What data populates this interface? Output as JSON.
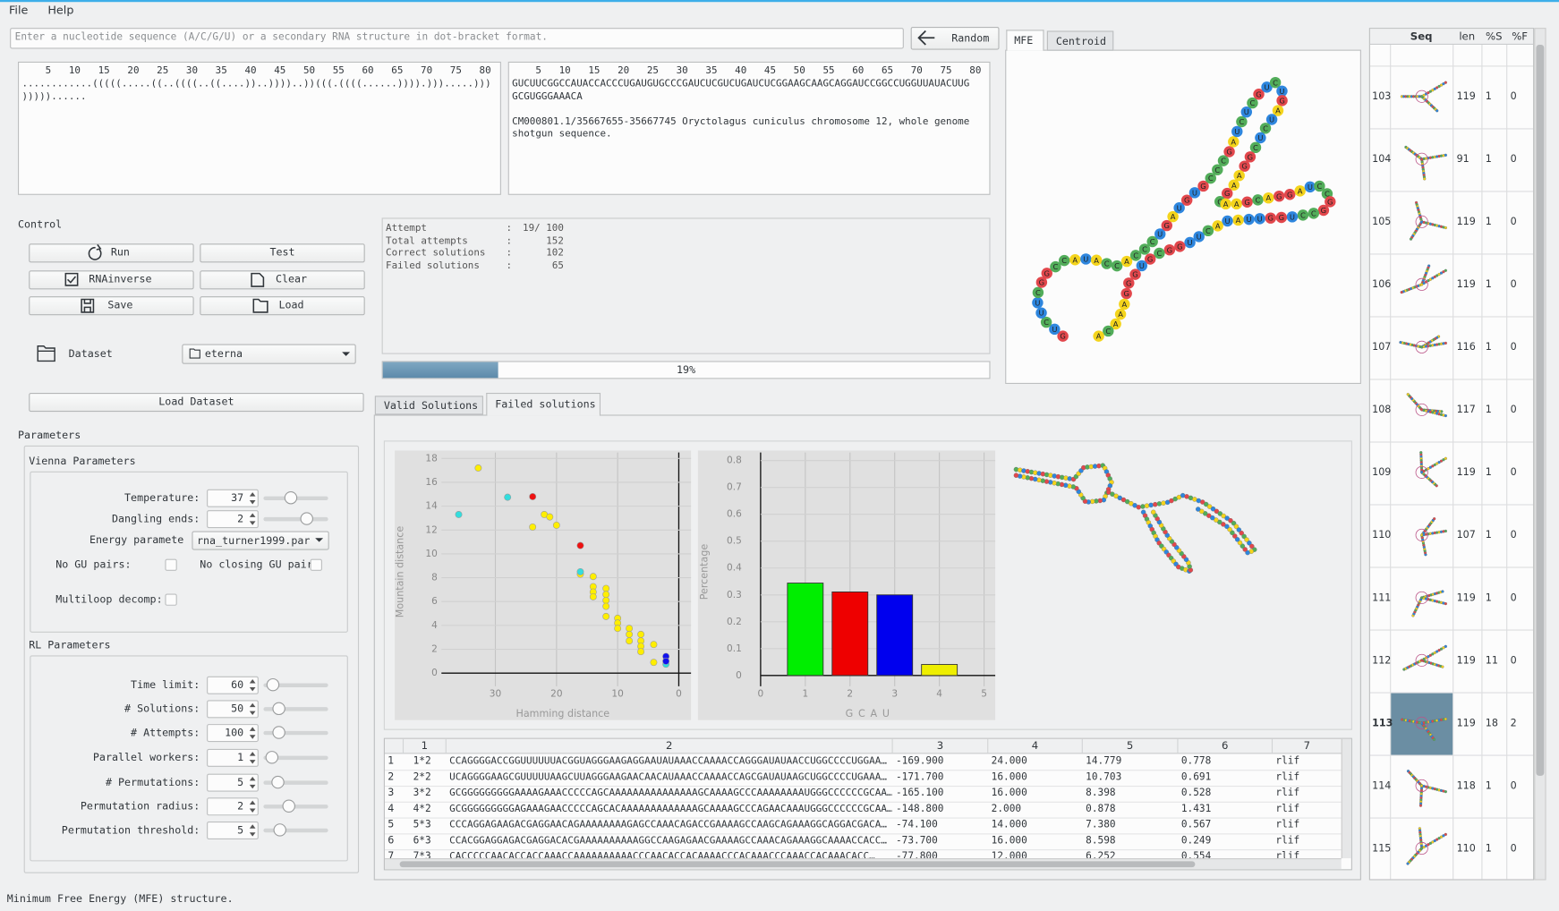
{
  "menu": [
    "File",
    "Help"
  ],
  "sequence_input": {
    "placeholder": "Enter a nucleotide sequence (A/C/G/U) or a secondary RNA structure in dot-bracket format."
  },
  "random_button": "Random",
  "structure_tabs": [
    "MFE",
    "Centroid"
  ],
  "ruler": "    5   10   15   20   25   30   35   40   45   50   55   60   65   70   75   80",
  "structure_editor": {
    "lines": [
      "............(((((.....((..((((..((....))..))))..))(((.((((......)))).))).....)))",
      ")))))......"
    ]
  },
  "sequence_editor": {
    "lines": [
      "GUCUUCGGCCAUACCACCCUGAUGUGCCCGAUCUCGUCUGAUCUCGGAAGCAAGCAGGAUCCGGCCUGGUUAUACUUG",
      "GCGUGGGAAACA",
      "CM000801.1/35667655-35667745 Oryctolagus cuniculus chromosome 12, whole genome",
      "shotgun sequence."
    ]
  },
  "control": {
    "title": "Control",
    "buttons": [
      "Run",
      "Test",
      "RNAinverse",
      "Clear",
      "Save",
      "Load"
    ],
    "dataset_label": "Dataset",
    "dataset_value": "eterna",
    "load_dataset": "Load Dataset"
  },
  "status": {
    "rows": [
      [
        "Attempt",
        ":",
        "19/ 100"
      ],
      [
        "Total attempts",
        ":",
        "152"
      ],
      [
        "Correct solutions",
        ":",
        "102"
      ],
      [
        "Failed solutions",
        ":",
        "65"
      ]
    ]
  },
  "progress": {
    "label": "19%",
    "value": 19,
    "lim": [
      0,
      100
    ]
  },
  "solution_tabs": [
    "Valid Solutions",
    "Failed solutions"
  ],
  "parameters": {
    "title": "Parameters",
    "vienna": {
      "title": "Vienna Parameters",
      "spin_fields": [
        {
          "label": "Temperature:",
          "value": 37
        },
        {
          "label": "Dangling ends:",
          "value": 2
        }
      ],
      "energy": {
        "label": "Energy paramete",
        "value": "rna_turner1999.par"
      },
      "checks": [
        "No GU pairs:",
        "No closing GU pair",
        "Multiloop decomp:"
      ]
    },
    "rl": {
      "title": "RL Parameters",
      "spin_fields": [
        {
          "label": "Time limit:",
          "value": 60
        },
        {
          "label": "# Solutions:",
          "value": 50
        },
        {
          "label": "# Attempts:",
          "value": 100
        },
        {
          "label": "Parallel workers:",
          "value": 1
        },
        {
          "label": "# Permutations:",
          "value": 5
        },
        {
          "label": "Permutation radius:",
          "value": 2
        },
        {
          "label": "Permutation threshold:",
          "value": 5
        }
      ]
    }
  },
  "scatter": {
    "type": "scatter",
    "x_label": "Hamming distance",
    "y_label": "Mountain distance",
    "xlim": [
      46.3,
      -2
    ],
    "ylim": [
      -1.1,
      18.5
    ],
    "xticks": [
      30,
      20,
      10,
      0
    ],
    "yticks": [
      0,
      2,
      4,
      6,
      8,
      10,
      12,
      14,
      16,
      18
    ],
    "grid": true,
    "series": [
      {
        "color": "#ffee00",
        "x": [
          32.8,
          22,
          21.1,
          20,
          23.9,
          16.1,
          14,
          14,
          14,
          14,
          11.9,
          11.9,
          11.9,
          11.9,
          11.9,
          10,
          10,
          10,
          8.1,
          8.1,
          8.1,
          6.2,
          6.2,
          6.2,
          6.2,
          4.1,
          4.1
        ],
        "y": [
          17.2,
          13.3,
          13.1,
          12.4,
          12.25,
          8.3,
          8.1,
          7.25,
          6.8,
          6.4,
          7.1,
          6.6,
          6.1,
          5.6,
          4.75,
          4.6,
          4.2,
          3.75,
          3.75,
          3.25,
          2.7,
          3.25,
          2.7,
          2.25,
          1.8,
          2.4,
          0.9
        ]
      },
      {
        "color": "#33dddd",
        "x": [
          36,
          28,
          16.1,
          2.1
        ],
        "y": [
          13.3,
          14.75,
          8.5,
          0.75
        ]
      },
      {
        "color": "#ee1111",
        "x": [
          23.9,
          16.1
        ],
        "y": [
          14.8,
          10.7
        ]
      },
      {
        "color": "#1111ee",
        "x": [
          2.1,
          2.1
        ],
        "y": [
          1.4,
          1.0
        ]
      }
    ]
  },
  "bar": {
    "type": "bar",
    "x_label": "G C A U",
    "y_label": "Percentage",
    "x": [
      1,
      2,
      3,
      4
    ],
    "values": [
      0.344,
      0.311,
      0.3,
      0.041
    ],
    "colors": [
      "#00ee00",
      "#ee0000",
      "#0000ee",
      "#eeee00"
    ],
    "xlim": [
      0,
      5.25
    ],
    "ylim": [
      -0.04,
      0.83
    ],
    "xticks": [
      0,
      1,
      2,
      3,
      4,
      5
    ],
    "yticks": [
      0,
      0.1,
      0.2,
      0.3,
      0.4,
      0.5,
      0.6,
      0.7,
      0.8
    ],
    "grid": true
  },
  "table": {
    "columns": [
      "1",
      "2",
      "3",
      "4",
      "5",
      "6",
      "7"
    ],
    "row_headers": [
      1,
      2,
      3,
      4,
      5,
      6,
      7
    ],
    "rows": [
      [
        "1*2",
        "CCAGGGGACCGGUUUUUUACGGUAGGGAAGAGGAAUAUAAACCAAAACCAGGGAUAUAACCUGGCCCCUGGAA…",
        "-169.900",
        "24.000",
        "14.779",
        "0.778",
        "rlif"
      ],
      [
        "2*2",
        "UCAGGGGAAGCGUUUUUAAGCUUAGGGAAGAACAACAUAAACCAAAACCAGCGAUAUAAGCUGGCCCCUGAAA…",
        "-171.700",
        "16.000",
        "10.703",
        "0.691",
        "rlif"
      ],
      [
        "3*2",
        "GCGGGGGGGGGAAAAGAAACCCCCAGCAAAAAAAAAAAAAAAGCAAAAGCCCAAAAAAAAUGGGCCCCCCGCAA…",
        "-165.100",
        "16.000",
        "8.398",
        "0.528",
        "rlif"
      ],
      [
        "4*2",
        "GCGGGGGGGGGAGAAAGAACCCCCAGCACAAAAAAAAAAAAAGCAAAAGCCCAGAACAAAUGGGCCCCCCGCAA…",
        "-148.800",
        "2.000",
        "0.878",
        "1.431",
        "rlif"
      ],
      [
        "5*3",
        "CCCAGGAGAAGACGAGGAACAGAAAAAAAAGAGCCAAACAGACCGAAAAGCCAAGCAGAAAGGCAGGACGACA…",
        "-74.100",
        "14.000",
        "7.380",
        "0.567",
        "rlif"
      ],
      [
        "6*3",
        "CCACGGAGGAGACGAGGACACGAAAAAAAAAAGGCCAAGAGAACGAAAAGCCAAACAGAAAGGCAAAACCACC…",
        "-73.700",
        "16.000",
        "8.598",
        "0.249",
        "rlif"
      ],
      [
        "7*3",
        "CACCCCCAACACCACCAAACCAAAAAAAAAACCCAACACCACAAAACCCACAAACCCAAACCACAAACACC…",
        "-77.800",
        "12.000",
        "6.252",
        "0.554",
        "rlif"
      ]
    ]
  },
  "side_table": {
    "columns": [
      "Seq",
      "len",
      "%S",
      "%F"
    ],
    "rows": [
      [
        103,
        119,
        1,
        0
      ],
      [
        104,
        91,
        1,
        0
      ],
      [
        105,
        119,
        1,
        0
      ],
      [
        106,
        119,
        1,
        0
      ],
      [
        107,
        116,
        1,
        0
      ],
      [
        108,
        117,
        1,
        0
      ],
      [
        109,
        119,
        1,
        0
      ],
      [
        110,
        107,
        1,
        0
      ],
      [
        111,
        119,
        1,
        0
      ],
      [
        112,
        119,
        11,
        0
      ],
      [
        113,
        119,
        18,
        2
      ],
      [
        114,
        118,
        1,
        0
      ],
      [
        115,
        110,
        1,
        0
      ]
    ]
  },
  "status_bar": "Minimum Free Energy (MFE) structure."
}
